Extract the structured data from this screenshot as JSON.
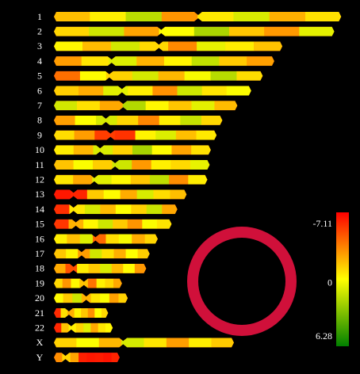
{
  "chromosomes": [
    {
      "label": "1",
      "length": 249,
      "centromere": 125,
      "values": [
        -2.1,
        -0.8,
        1.4,
        -3.2,
        -1.0,
        0.6,
        -2.5,
        -1.2
      ]
    },
    {
      "label": "2",
      "length": 243,
      "centromere": 93,
      "values": [
        -1.5,
        0.9,
        -2.8,
        -0.4,
        1.8,
        -1.9,
        -3.1,
        0.3
      ]
    },
    {
      "label": "3",
      "length": 198,
      "centromere": 91,
      "values": [
        -0.6,
        -2.2,
        0.8,
        -1.4,
        -3.5,
        0.2,
        -0.9,
        -2.0
      ]
    },
    {
      "label": "4",
      "length": 191,
      "centromere": 50,
      "values": [
        -3.0,
        -1.1,
        0.5,
        -2.4,
        -0.7,
        1.2,
        -1.8,
        -2.9
      ]
    },
    {
      "label": "5",
      "length": 181,
      "centromere": 48,
      "values": [
        -4.2,
        -0.5,
        -1.6,
        0.7,
        -2.3,
        -0.2,
        1.5,
        -1.3
      ]
    },
    {
      "label": "6",
      "length": 171,
      "centromere": 59,
      "values": [
        -1.7,
        -2.6,
        0.4,
        -0.9,
        -3.3,
        0.9,
        -1.1,
        -0.3
      ]
    },
    {
      "label": "7",
      "length": 159,
      "centromere": 60,
      "values": [
        0.8,
        -1.2,
        -2.7,
        1.6,
        -0.6,
        -1.9,
        0.3,
        -2.2
      ]
    },
    {
      "label": "8",
      "length": 146,
      "centromere": 45,
      "values": [
        -2.9,
        -0.4,
        0.7,
        -1.5,
        -3.6,
        -0.8,
        1.1,
        -1.4
      ]
    },
    {
      "label": "9",
      "length": 141,
      "centromere": 49,
      "values": [
        -1.3,
        -3.0,
        -5.5,
        -5.8,
        -0.7,
        0.5,
        -2.1,
        -1.0
      ]
    },
    {
      "label": "10",
      "length": 136,
      "centromere": 40,
      "values": [
        -0.9,
        -2.3,
        0.6,
        -1.6,
        1.9,
        -0.5,
        -2.8,
        -1.2
      ]
    },
    {
      "label": "11",
      "length": 135,
      "centromere": 53,
      "values": [
        -2.0,
        -0.3,
        -1.7,
        0.9,
        -3.1,
        -0.8,
        -1.4,
        0.2
      ]
    },
    {
      "label": "12",
      "length": 133,
      "centromere": 35,
      "values": [
        -1.1,
        -2.7,
        0.4,
        -0.6,
        -1.9,
        1.3,
        -3.4,
        -0.9
      ]
    },
    {
      "label": "13",
      "length": 115,
      "centromere": 17,
      "values": [
        -6.5,
        -6.2,
        -1.8,
        -0.5,
        -2.6,
        0.6,
        -1.3,
        -2.1
      ]
    },
    {
      "label": "14",
      "length": 107,
      "centromere": 17,
      "values": [
        -5.9,
        -1.0,
        0.7,
        -2.2,
        -0.4,
        -1.6,
        1.0,
        -2.7
      ]
    },
    {
      "label": "15",
      "length": 102,
      "centromere": 19,
      "values": [
        -5.7,
        -2.4,
        -0.6,
        0.9,
        -1.8,
        -3.2,
        -0.3,
        -1.1
      ]
    },
    {
      "label": "16",
      "length": 90,
      "centromere": 36,
      "values": [
        -0.8,
        -2.1,
        0.5,
        -4.4,
        -1.3,
        -0.2,
        -2.6,
        -1.5
      ]
    },
    {
      "label": "17",
      "length": 83,
      "centromere": 24,
      "values": [
        -1.9,
        -0.7,
        -3.0,
        0.8,
        -1.2,
        -2.5,
        -0.4,
        -1.7
      ]
    },
    {
      "label": "18",
      "length": 80,
      "centromere": 17,
      "values": [
        -2.6,
        -5.0,
        -0.9,
        -1.8,
        0.6,
        -2.2,
        -0.5,
        -3.1
      ]
    },
    {
      "label": "19",
      "length": 59,
      "centromere": 26,
      "values": [
        -1.4,
        -3.2,
        -0.6,
        -2.0,
        -4.1,
        -0.8,
        -1.5,
        -2.7
      ]
    },
    {
      "label": "20",
      "length": 64,
      "centromere": 28,
      "values": [
        -0.5,
        -1.8,
        0.9,
        -2.4,
        -1.1,
        -0.3,
        -2.9,
        -1.6
      ]
    },
    {
      "label": "21",
      "length": 47,
      "centromere": 13,
      "values": [
        -6.0,
        -1.2,
        -2.5,
        -0.7,
        -1.9,
        -3.3,
        -0.4,
        -1.4
      ]
    },
    {
      "label": "22",
      "length": 51,
      "centromere": 15,
      "values": [
        -6.1,
        -2.0,
        -0.8,
        -1.6,
        0.4,
        -2.7,
        -1.1,
        -0.6
      ]
    },
    {
      "label": "X",
      "length": 156,
      "centromere": 60,
      "values": [
        -1.6,
        -0.4,
        -2.3,
        0.7,
        -1.1,
        -3.0,
        -0.9,
        -1.8
      ]
    },
    {
      "label": "Y",
      "length": 57,
      "centromere": 10,
      "values": [
        -3.4,
        -1.5,
        -2.8,
        -6.3,
        -6.5,
        -6.4,
        -6.6,
        -6.2
      ]
    }
  ],
  "colorbar": {
    "ticks": [
      -7.11,
      0,
      6.28
    ],
    "colors": [
      "#ff0000",
      "#ffff00",
      "#008000"
    ]
  }
}
